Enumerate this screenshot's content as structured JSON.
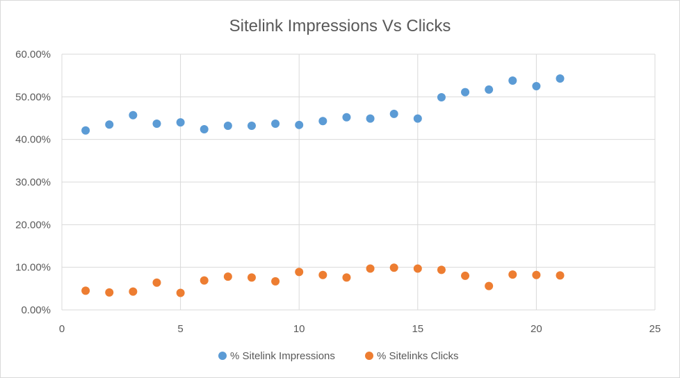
{
  "chart_data": {
    "type": "scatter",
    "title": "Sitelink Impressions Vs Clicks",
    "xlabel": "",
    "ylabel": "",
    "xlim": [
      0,
      25
    ],
    "ylim": [
      0,
      0.6
    ],
    "x_ticks": [
      "0",
      "5",
      "10",
      "15",
      "20",
      "25"
    ],
    "y_ticks": [
      "0.00%",
      "10.00%",
      "20.00%",
      "30.00%",
      "40.00%",
      "50.00%",
      "60.00%"
    ],
    "grid": true,
    "legend_position": "bottom",
    "series": [
      {
        "name": "% Sitelink Impressions",
        "color": "#5b9bd5",
        "x": [
          1,
          2,
          3,
          4,
          5,
          6,
          7,
          8,
          9,
          10,
          11,
          12,
          13,
          14,
          15,
          16,
          17,
          18,
          19,
          20,
          21
        ],
        "y": [
          0.421,
          0.435,
          0.457,
          0.437,
          0.44,
          0.424,
          0.432,
          0.432,
          0.437,
          0.434,
          0.443,
          0.452,
          0.449,
          0.46,
          0.449,
          0.499,
          0.511,
          0.517,
          0.538,
          0.525,
          0.543
        ]
      },
      {
        "name": "% Sitelinks Clicks",
        "color": "#ed7d31",
        "x": [
          1,
          2,
          3,
          4,
          5,
          6,
          7,
          8,
          9,
          10,
          11,
          12,
          13,
          14,
          15,
          16,
          17,
          18,
          19,
          20,
          21
        ],
        "y": [
          0.045,
          0.041,
          0.043,
          0.064,
          0.04,
          0.069,
          0.078,
          0.076,
          0.067,
          0.089,
          0.082,
          0.076,
          0.097,
          0.099,
          0.097,
          0.094,
          0.08,
          0.056,
          0.083,
          0.082,
          0.081
        ]
      }
    ]
  }
}
